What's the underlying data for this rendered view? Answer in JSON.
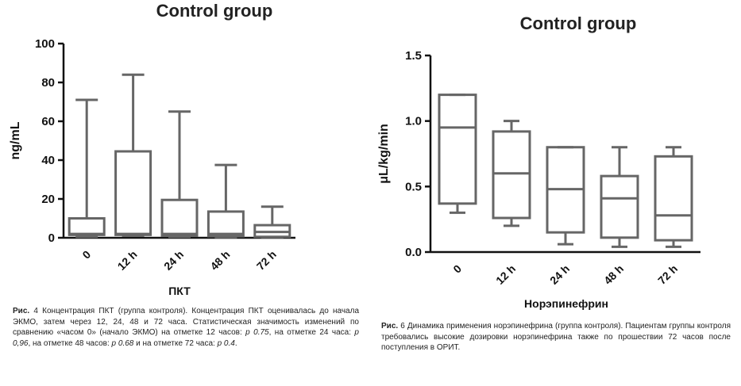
{
  "chart_data": [
    {
      "type": "box",
      "title": "Control group",
      "ylabel": "ng/mL",
      "xlabel": "ПКТ",
      "ylim": [
        0,
        100
      ],
      "yticks": [
        0,
        20,
        40,
        60,
        80,
        100
      ],
      "categories": [
        "0",
        "12 h",
        "24 h",
        "48 h",
        "72 h"
      ],
      "boxes": [
        {
          "min": 0.5,
          "q1": 1.5,
          "median": 2,
          "q3": 10,
          "max": 71
        },
        {
          "min": 1,
          "q1": 1.5,
          "median": 2,
          "q3": 44.5,
          "max": 84
        },
        {
          "min": 0.5,
          "q1": 1,
          "median": 2,
          "q3": 19.5,
          "max": 65
        },
        {
          "min": 0.3,
          "q1": 0.8,
          "median": 2,
          "q3": 13.5,
          "max": 37.5
        },
        {
          "min": 0.3,
          "q1": 0.5,
          "median": 3,
          "q3": 6.5,
          "max": 16
        }
      ]
    },
    {
      "type": "box",
      "title": "Control group",
      "ylabel": "μL/kg/min",
      "xlabel": "Норэпинефрин",
      "ylim": [
        0,
        1.5
      ],
      "yticks": [
        "0.0",
        "0.5",
        "1.0",
        "1.5"
      ],
      "categories": [
        "0",
        "12 h",
        "24 h",
        "48 h",
        "72 h"
      ],
      "boxes": [
        {
          "min": 0.3,
          "q1": 0.37,
          "median": 0.95,
          "q3": 1.2,
          "max": 1.2
        },
        {
          "min": 0.2,
          "q1": 0.26,
          "median": 0.6,
          "q3": 0.92,
          "max": 1.0
        },
        {
          "min": 0.06,
          "q1": 0.15,
          "median": 0.48,
          "q3": 0.8,
          "max": 0.8
        },
        {
          "min": 0.04,
          "q1": 0.11,
          "median": 0.41,
          "q3": 0.58,
          "max": 0.8
        },
        {
          "min": 0.04,
          "q1": 0.09,
          "median": 0.28,
          "q3": 0.73,
          "max": 0.8
        }
      ]
    }
  ],
  "captions": {
    "left": {
      "label": "Рис.",
      "number": "4",
      "pre": " Концентрация ПКТ (группа контроля). Концентрация ПКТ оценивалась до начала ЭКМО, затем через 12, 24, 48 и 72 часа. Статистическая значимость изменений по сравнению «часом 0» (начало ЭКМО) на отметке 12 часов: ",
      "p1": "p 0.75",
      "mid1": ", на отметке 24 часа: ",
      "p2": "p 0,96",
      "mid2": ", на отметке 48 часов: ",
      "p3": "p 0.68",
      "mid3": " и на отметке 72 часа: ",
      "p4": "p 0.4",
      "end": "."
    },
    "right": {
      "label": "Рис.",
      "number": "6",
      "text": " Динамика применения норэпинефрина (группа контроля). Пациентам группы контроля требовались высокие дозировки норэпинефрина также по прошествии 72 часов после поступления в ОРИТ."
    }
  }
}
